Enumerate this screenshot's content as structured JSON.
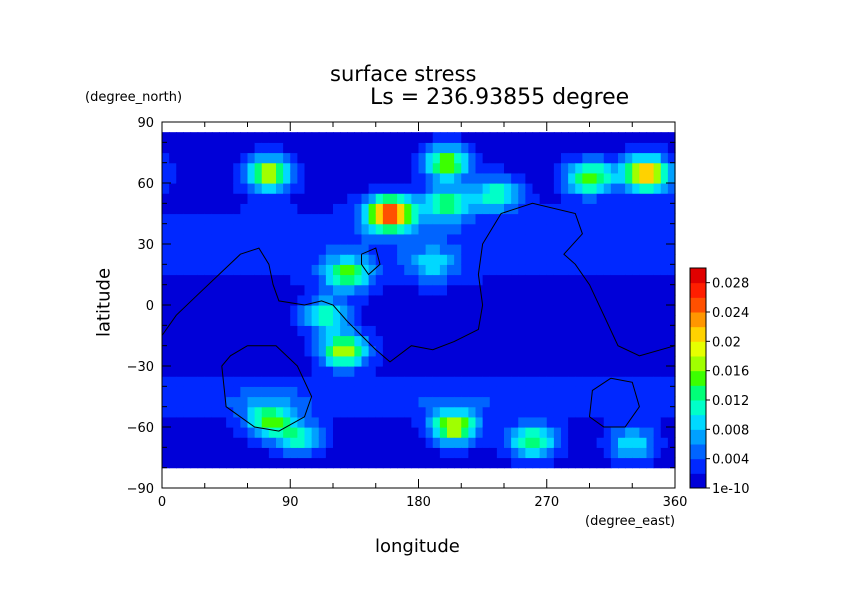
{
  "chart_data": {
    "type": "heatmap",
    "title": "surface stress",
    "subtitle": "Ls = 236.93855 degree",
    "xlabel": "longitude",
    "ylabel": "latitude",
    "x_units": "(degree_east)",
    "y_units": "(degree_north)",
    "xlim": [
      0,
      360
    ],
    "ylim": [
      -90,
      90
    ],
    "x_ticks": [
      0,
      90,
      180,
      270,
      360
    ],
    "y_ticks": [
      -90,
      -60,
      -30,
      0,
      30,
      60,
      90
    ],
    "colorbar": {
      "min": 0,
      "max": 0.03,
      "tick_labels": [
        "1e-10",
        "0.004",
        "0.008",
        "0.012",
        "0.016",
        "0.02",
        "0.024",
        "0.028"
      ],
      "tick_values": [
        0,
        0.004,
        0.008,
        0.012,
        0.016,
        0.02,
        0.024,
        0.028
      ],
      "colors": [
        "#0000d8",
        "#0028ff",
        "#0064ff",
        "#00a0ff",
        "#00d8ff",
        "#00ffc8",
        "#00ff78",
        "#3cff00",
        "#a0ff00",
        "#e6ff00",
        "#ffd200",
        "#ff9600",
        "#ff5000",
        "#ff1e00",
        "#e00000"
      ]
    },
    "background_value": 0.001,
    "hotspots": [
      {
        "lon": 160,
        "lat": 45,
        "value": 0.027
      },
      {
        "lon": 340,
        "lat": 65,
        "value": 0.023
      },
      {
        "lon": 300,
        "lat": 63,
        "value": 0.016
      },
      {
        "lon": 75,
        "lat": 65,
        "value": 0.018
      },
      {
        "lon": 200,
        "lat": 70,
        "value": 0.016
      },
      {
        "lon": 200,
        "lat": 50,
        "value": 0.014
      },
      {
        "lon": 235,
        "lat": 55,
        "value": 0.012
      },
      {
        "lon": 130,
        "lat": 15,
        "value": 0.014
      },
      {
        "lon": 128,
        "lat": -22,
        "value": 0.018
      },
      {
        "lon": 115,
        "lat": -5,
        "value": 0.012
      },
      {
        "lon": 205,
        "lat": -60,
        "value": 0.018
      },
      {
        "lon": 260,
        "lat": -67,
        "value": 0.014
      },
      {
        "lon": 75,
        "lat": -56,
        "value": 0.014
      },
      {
        "lon": 95,
        "lat": -65,
        "value": 0.012
      },
      {
        "lon": 330,
        "lat": -68,
        "value": 0.01
      },
      {
        "lon": 190,
        "lat": 20,
        "value": 0.008
      }
    ],
    "contour_lines": [
      [
        [
          0,
          -15
        ],
        [
          10,
          -5
        ],
        [
          25,
          5
        ],
        [
          40,
          15
        ],
        [
          55,
          25
        ],
        [
          68,
          28
        ],
        [
          75,
          20
        ],
        [
          78,
          10
        ],
        [
          82,
          2
        ],
        [
          100,
          0
        ],
        [
          112,
          2
        ],
        [
          120,
          0
        ],
        [
          130,
          -8
        ],
        [
          140,
          -15
        ],
        [
          150,
          -22
        ],
        [
          160,
          -28
        ],
        [
          175,
          -20
        ],
        [
          190,
          -22
        ],
        [
          205,
          -18
        ],
        [
          222,
          -12
        ],
        [
          225,
          0
        ],
        [
          222,
          15
        ],
        [
          225,
          30
        ],
        [
          238,
          45
        ],
        [
          260,
          50
        ],
        [
          290,
          45
        ],
        [
          295,
          35
        ],
        [
          282,
          25
        ],
        [
          290,
          20
        ],
        [
          300,
          10
        ],
        [
          310,
          -5
        ],
        [
          320,
          -20
        ],
        [
          335,
          -25
        ],
        [
          360,
          -20
        ]
      ],
      [
        [
          60,
          -20
        ],
        [
          80,
          -20
        ],
        [
          95,
          -30
        ],
        [
          105,
          -45
        ],
        [
          100,
          -55
        ],
        [
          82,
          -62
        ],
        [
          65,
          -60
        ],
        [
          45,
          -50
        ],
        [
          42,
          -30
        ],
        [
          48,
          -25
        ],
        [
          60,
          -20
        ]
      ],
      [
        [
          315,
          -36
        ],
        [
          330,
          -38
        ],
        [
          335,
          -50
        ],
        [
          325,
          -60
        ],
        [
          310,
          -60
        ],
        [
          300,
          -55
        ],
        [
          302,
          -42
        ],
        [
          315,
          -36
        ]
      ],
      [
        [
          140,
          25
        ],
        [
          150,
          28
        ],
        [
          153,
          20
        ],
        [
          145,
          15
        ],
        [
          140,
          20
        ],
        [
          140,
          25
        ]
      ]
    ]
  }
}
